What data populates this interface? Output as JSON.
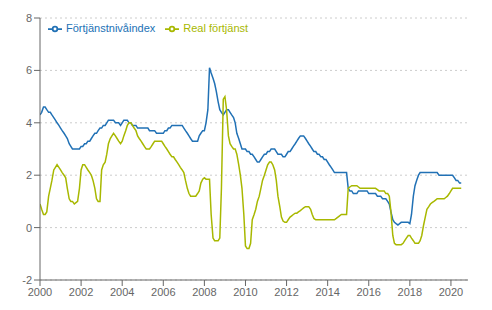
{
  "chart_data": {
    "type": "line",
    "x": [
      2000.0,
      2000.08,
      2000.17,
      2000.25,
      2000.33,
      2000.42,
      2000.5,
      2000.58,
      2000.67,
      2000.75,
      2000.83,
      2000.92,
      2001.0,
      2001.08,
      2001.17,
      2001.25,
      2001.33,
      2001.42,
      2001.5,
      2001.58,
      2001.67,
      2001.75,
      2001.83,
      2001.92,
      2002.0,
      2002.08,
      2002.17,
      2002.25,
      2002.33,
      2002.42,
      2002.5,
      2002.58,
      2002.67,
      2002.75,
      2002.83,
      2002.92,
      2003.0,
      2003.08,
      2003.17,
      2003.25,
      2003.33,
      2003.42,
      2003.5,
      2003.58,
      2003.67,
      2003.75,
      2003.83,
      2003.92,
      2004.0,
      2004.08,
      2004.17,
      2004.25,
      2004.33,
      2004.42,
      2004.5,
      2004.58,
      2004.67,
      2004.75,
      2004.83,
      2004.92,
      2005.0,
      2005.08,
      2005.17,
      2005.25,
      2005.33,
      2005.42,
      2005.5,
      2005.58,
      2005.67,
      2005.75,
      2005.83,
      2005.92,
      2006.0,
      2006.08,
      2006.17,
      2006.25,
      2006.33,
      2006.42,
      2006.5,
      2006.58,
      2006.67,
      2006.75,
      2006.83,
      2006.92,
      2007.0,
      2007.08,
      2007.17,
      2007.25,
      2007.33,
      2007.42,
      2007.5,
      2007.58,
      2007.67,
      2007.75,
      2007.83,
      2007.92,
      2008.0,
      2008.08,
      2008.17,
      2008.25,
      2008.33,
      2008.42,
      2008.5,
      2008.58,
      2008.67,
      2008.75,
      2008.83,
      2008.92,
      2009.0,
      2009.08,
      2009.17,
      2009.25,
      2009.33,
      2009.42,
      2009.5,
      2009.58,
      2009.67,
      2009.75,
      2009.83,
      2009.92,
      2010.0,
      2010.08,
      2010.17,
      2010.25,
      2010.33,
      2010.42,
      2010.5,
      2010.58,
      2010.67,
      2010.75,
      2010.83,
      2010.92,
      2011.0,
      2011.08,
      2011.17,
      2011.25,
      2011.33,
      2011.42,
      2011.5,
      2011.58,
      2011.67,
      2011.75,
      2011.83,
      2011.92,
      2012.0,
      2012.08,
      2012.17,
      2012.25,
      2012.33,
      2012.42,
      2012.5,
      2012.58,
      2012.67,
      2012.75,
      2012.83,
      2012.92,
      2013.0,
      2013.08,
      2013.17,
      2013.25,
      2013.33,
      2013.42,
      2013.5,
      2013.58,
      2013.67,
      2013.75,
      2013.83,
      2013.92,
      2014.0,
      2014.08,
      2014.17,
      2014.25,
      2014.33,
      2014.42,
      2014.5,
      2014.58,
      2014.67,
      2014.75,
      2014.83,
      2014.92,
      2015.0,
      2015.08,
      2015.17,
      2015.25,
      2015.33,
      2015.42,
      2015.5,
      2015.58,
      2015.67,
      2015.75,
      2015.83,
      2015.92,
      2016.0,
      2016.08,
      2016.17,
      2016.25,
      2016.33,
      2016.42,
      2016.5,
      2016.58,
      2016.67,
      2016.75,
      2016.83,
      2016.92,
      2017.0,
      2017.08,
      2017.17,
      2017.25,
      2017.33,
      2017.42,
      2017.5,
      2017.58,
      2017.67,
      2017.75,
      2017.83,
      2017.92,
      2018.0,
      2018.08,
      2018.17,
      2018.25,
      2018.33,
      2018.42,
      2018.5,
      2018.58,
      2018.67,
      2018.75,
      2018.83,
      2018.92,
      2019.0,
      2019.08,
      2019.17,
      2019.25,
      2019.33,
      2019.42,
      2019.5,
      2019.58,
      2019.67,
      2019.75,
      2019.83,
      2019.92,
      2020.0,
      2020.08,
      2020.17,
      2020.25,
      2020.33,
      2020.42,
      2020.5
    ],
    "series": [
      {
        "name": "Förtjänstnivåindex",
        "color": "#2171b5",
        "values": [
          4.3,
          4.4,
          4.6,
          4.6,
          4.5,
          4.4,
          4.4,
          4.3,
          4.2,
          4.1,
          4.0,
          3.9,
          3.8,
          3.7,
          3.6,
          3.5,
          3.4,
          3.2,
          3.1,
          3.0,
          3.0,
          3.0,
          3.0,
          3.0,
          3.1,
          3.1,
          3.2,
          3.2,
          3.3,
          3.3,
          3.4,
          3.5,
          3.6,
          3.6,
          3.7,
          3.8,
          3.8,
          3.9,
          3.9,
          4.0,
          4.1,
          4.1,
          4.1,
          4.1,
          4.0,
          4.0,
          4.0,
          3.9,
          4.0,
          4.1,
          4.1,
          4.1,
          4.0,
          4.0,
          3.9,
          3.9,
          3.9,
          3.8,
          3.8,
          3.8,
          3.8,
          3.8,
          3.8,
          3.8,
          3.7,
          3.7,
          3.7,
          3.7,
          3.6,
          3.6,
          3.6,
          3.6,
          3.6,
          3.7,
          3.7,
          3.8,
          3.8,
          3.9,
          3.9,
          3.9,
          3.9,
          3.9,
          3.9,
          3.9,
          3.8,
          3.7,
          3.6,
          3.5,
          3.4,
          3.3,
          3.3,
          3.3,
          3.3,
          3.5,
          3.6,
          3.7,
          3.7,
          4.0,
          4.5,
          6.1,
          5.9,
          5.7,
          5.5,
          5.2,
          4.8,
          4.5,
          4.4,
          4.3,
          4.4,
          4.5,
          4.5,
          4.4,
          4.3,
          4.2,
          4.0,
          3.6,
          3.4,
          3.2,
          3.0,
          3.0,
          3.0,
          2.9,
          2.9,
          2.8,
          2.8,
          2.7,
          2.6,
          2.5,
          2.5,
          2.6,
          2.7,
          2.8,
          2.8,
          2.9,
          2.9,
          3.0,
          3.0,
          3.0,
          2.9,
          2.8,
          2.8,
          2.8,
          2.7,
          2.7,
          2.8,
          2.9,
          2.9,
          3.0,
          3.1,
          3.2,
          3.3,
          3.4,
          3.5,
          3.5,
          3.5,
          3.4,
          3.3,
          3.2,
          3.1,
          3.0,
          2.9,
          2.9,
          2.8,
          2.8,
          2.7,
          2.7,
          2.6,
          2.6,
          2.5,
          2.4,
          2.3,
          2.2,
          2.1,
          2.1,
          2.1,
          2.1,
          2.1,
          2.1,
          2.1,
          2.1,
          1.5,
          1.4,
          1.4,
          1.3,
          1.3,
          1.3,
          1.4,
          1.4,
          1.4,
          1.4,
          1.4,
          1.4,
          1.3,
          1.3,
          1.3,
          1.3,
          1.3,
          1.2,
          1.2,
          1.2,
          1.1,
          1.1,
          1.1,
          1.0,
          0.9,
          0.6,
          0.3,
          0.2,
          0.15,
          0.1,
          0.15,
          0.2,
          0.2,
          0.2,
          0.2,
          0.2,
          0.15,
          0.5,
          1.2,
          1.6,
          1.8,
          2.0,
          2.1,
          2.1,
          2.1,
          2.1,
          2.1,
          2.1,
          2.1,
          2.1,
          2.1,
          2.1,
          2.1,
          2.0,
          2.0,
          2.0,
          2.0,
          2.0,
          2.0,
          2.0,
          2.0,
          2.0,
          1.9,
          1.8,
          1.8,
          1.7,
          1.7
        ]
      },
      {
        "name": "Real förtjänst",
        "color": "#a8b800",
        "values": [
          0.9,
          0.7,
          0.5,
          0.5,
          0.6,
          1.2,
          1.5,
          1.8,
          2.2,
          2.3,
          2.4,
          2.3,
          2.2,
          2.1,
          2.0,
          1.9,
          1.5,
          1.1,
          1.0,
          1.0,
          0.9,
          0.95,
          1.0,
          1.5,
          2.2,
          2.4,
          2.4,
          2.3,
          2.2,
          2.1,
          2.0,
          1.8,
          1.5,
          1.1,
          1.0,
          1.0,
          2.2,
          2.4,
          2.5,
          2.8,
          3.2,
          3.4,
          3.5,
          3.6,
          3.5,
          3.4,
          3.3,
          3.2,
          3.3,
          3.5,
          3.7,
          3.9,
          4.0,
          4.0,
          3.9,
          3.8,
          3.7,
          3.5,
          3.4,
          3.3,
          3.2,
          3.1,
          3.0,
          3.0,
          3.0,
          3.1,
          3.2,
          3.3,
          3.3,
          3.3,
          3.3,
          3.3,
          3.2,
          3.1,
          3.0,
          2.9,
          2.8,
          2.7,
          2.7,
          2.6,
          2.5,
          2.4,
          2.3,
          2.2,
          2.1,
          1.8,
          1.5,
          1.3,
          1.2,
          1.2,
          1.2,
          1.2,
          1.3,
          1.4,
          1.7,
          1.85,
          1.9,
          1.85,
          1.85,
          1.85,
          0.5,
          -0.4,
          -0.5,
          -0.5,
          -0.5,
          -0.4,
          1.5,
          4.9,
          5.0,
          4.5,
          3.5,
          3.2,
          3.1,
          3.0,
          3.0,
          2.8,
          2.4,
          2.0,
          1.5,
          0.5,
          -0.7,
          -0.8,
          -0.8,
          -0.6,
          0.3,
          0.5,
          0.7,
          1.0,
          1.2,
          1.5,
          1.8,
          2.0,
          2.2,
          2.4,
          2.5,
          2.5,
          2.4,
          2.2,
          1.8,
          1.2,
          0.8,
          0.4,
          0.25,
          0.2,
          0.2,
          0.3,
          0.4,
          0.45,
          0.5,
          0.55,
          0.55,
          0.6,
          0.65,
          0.7,
          0.75,
          0.8,
          0.8,
          0.8,
          0.7,
          0.5,
          0.35,
          0.3,
          0.3,
          0.3,
          0.3,
          0.3,
          0.3,
          0.3,
          0.3,
          0.3,
          0.3,
          0.3,
          0.3,
          0.35,
          0.4,
          0.45,
          0.5,
          0.5,
          0.5,
          0.5,
          1.5,
          1.55,
          1.6,
          1.6,
          1.6,
          1.6,
          1.55,
          1.5,
          1.5,
          1.5,
          1.5,
          1.5,
          1.5,
          1.5,
          1.5,
          1.5,
          1.5,
          1.45,
          1.4,
          1.4,
          1.4,
          1.4,
          1.3,
          1.3,
          1.2,
          0.6,
          -0.3,
          -0.6,
          -0.65,
          -0.65,
          -0.65,
          -0.65,
          -0.6,
          -0.5,
          -0.4,
          -0.3,
          -0.3,
          -0.4,
          -0.5,
          -0.6,
          -0.6,
          -0.6,
          -0.5,
          -0.3,
          0.1,
          0.4,
          0.7,
          0.8,
          0.9,
          0.95,
          1.0,
          1.05,
          1.1,
          1.1,
          1.1,
          1.1,
          1.1,
          1.15,
          1.2,
          1.3,
          1.4,
          1.5,
          1.5,
          1.5,
          1.5,
          1.5,
          1.5
        ]
      }
    ],
    "xlim": [
      2000.0,
      2020.83
    ],
    "xticks": [
      2000,
      2002,
      2004,
      2006,
      2008,
      2010,
      2012,
      2014,
      2016,
      2018,
      2020
    ],
    "ylim": [
      -2,
      8
    ],
    "yticks": [
      -2,
      0,
      2,
      4,
      6,
      8
    ],
    "grid": true,
    "legend": "upper left"
  }
}
